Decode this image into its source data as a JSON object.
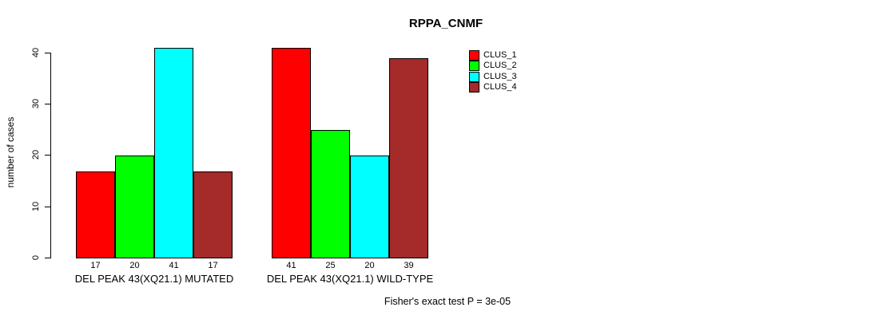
{
  "chart_data": {
    "type": "bar",
    "title": "RPPA_CNMF",
    "ylabel": "number of cases",
    "xlabel": "",
    "ylim": [
      0,
      41
    ],
    "yticks": [
      0,
      10,
      20,
      30,
      40
    ],
    "grid": false,
    "legend_position": "top-right",
    "bar_value_labels": true,
    "categories": [
      "DEL PEAK 43(XQ21.1) MUTATED",
      "DEL PEAK 43(XQ21.1) WILD-TYPE"
    ],
    "series": [
      {
        "name": "CLUS_1",
        "color": "#FF0000",
        "values": [
          17,
          41
        ]
      },
      {
        "name": "CLUS_2",
        "color": "#00FF00",
        "values": [
          20,
          25
        ]
      },
      {
        "name": "CLUS_3",
        "color": "#00FFFF",
        "values": [
          41,
          20
        ]
      },
      {
        "name": "CLUS_4",
        "color": "#A52A2A",
        "values": [
          17,
          39
        ]
      }
    ],
    "annotation": "Fisher's exact test P = 3e-05"
  }
}
